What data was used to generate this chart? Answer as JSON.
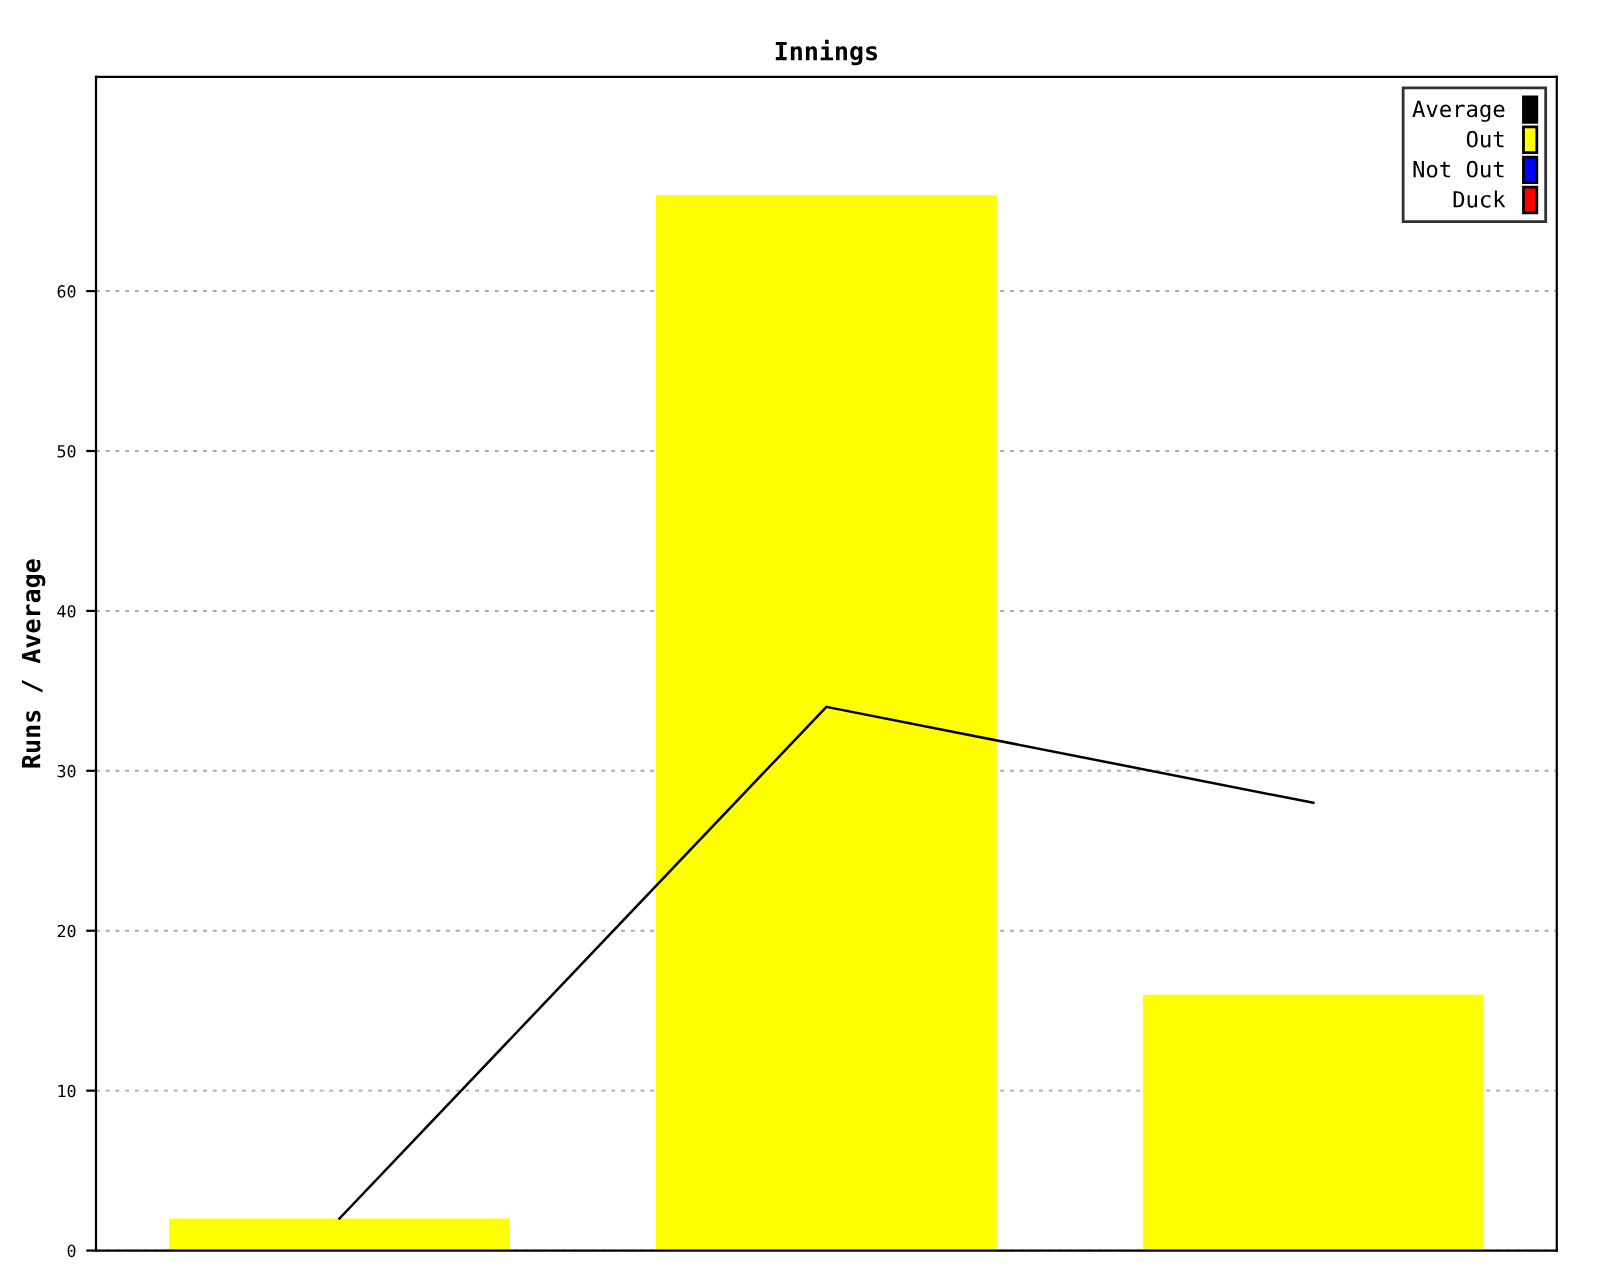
{
  "chart_data": {
    "type": "bar",
    "title": "Innings",
    "ylabel": "Runs / Average",
    "categories": [
      null,
      null,
      null
    ],
    "series": [
      {
        "name": "Average",
        "type": "line",
        "color": "#000000",
        "values": [
          2,
          34,
          28
        ]
      },
      {
        "name": "Out",
        "color": "#ffff00",
        "values": [
          2,
          66,
          16
        ]
      },
      {
        "name": "Not Out",
        "color": "#0000ff",
        "values": [
          null,
          null,
          null
        ]
      },
      {
        "name": "Duck",
        "color": "#ff0000",
        "values": [
          null,
          null,
          null
        ]
      }
    ],
    "ylim": [
      0,
      73.4
    ],
    "yticks": [
      0,
      10,
      20,
      30,
      40,
      50,
      60
    ],
    "grid": "y",
    "legend": "top right",
    "marker": "none",
    "line_style": "solid"
  }
}
